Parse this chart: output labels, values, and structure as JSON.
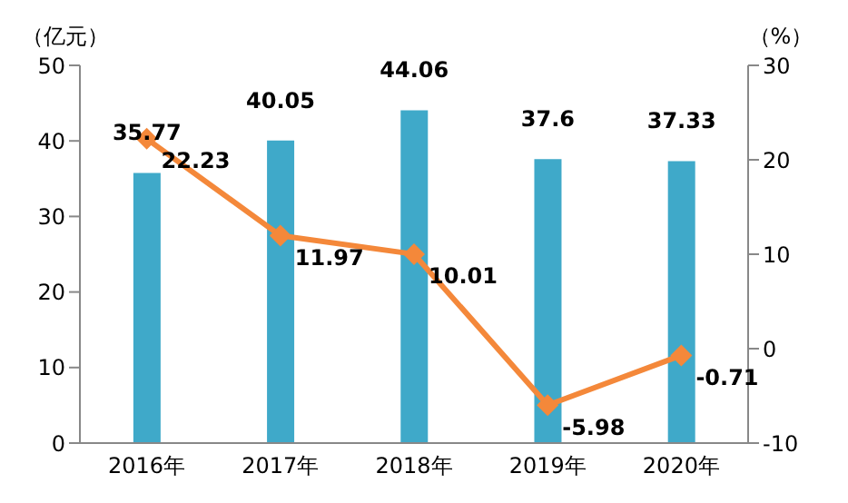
{
  "chart_data": {
    "type": "bar",
    "categories": [
      "2016年",
      "2017年",
      "2018年",
      "2019年",
      "2020年"
    ],
    "ylabel": "（亿元）",
    "y2label": "（%）",
    "series": [
      {
        "color": "#3fa9c9",
        "values": [
          35.77,
          40.05,
          44.06,
          37.6,
          37.33
        ]
      },
      {
        "type": "line",
        "axis": "y2",
        "color": "#f4883a",
        "values": [
          22.23,
          11.97,
          10.01,
          -5.98,
          -0.71
        ],
        "marker": "diamond"
      }
    ],
    "ylim": [
      0,
      50
    ],
    "yticks": [
      0,
      10,
      20,
      30,
      40,
      50
    ],
    "y2lim": [
      -10,
      30
    ],
    "y2ticks": [
      -10,
      0,
      10,
      20,
      30
    ],
    "data_labels": true,
    "grid": false,
    "legend": false
  }
}
